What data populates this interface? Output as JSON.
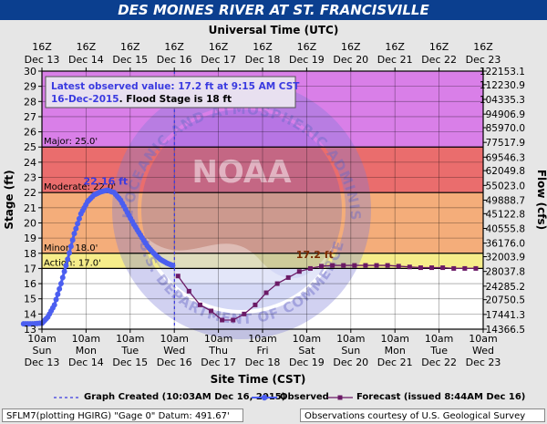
{
  "title": "DES MOINES RIVER AT ST. FRANCISVILLE",
  "top_axis_title": "Universal Time (UTC)",
  "bottom_axis_title": "Site Time (CST)",
  "left_axis_title": "Stage (ft)",
  "right_axis_title": "Flow (cfs)",
  "watermark": {
    "logo_text": "NOAA",
    "ring_text": "NATIONAL OCEANIC AND ATMOSPHERIC ADMINISTRATION",
    "department_text": "U.S. DEPARTMENT OF COMMERCE"
  },
  "info_box": {
    "observed_text": "Latest observed value: 17.2 ft at 9:15 AM CST 16-Dec-2015.",
    "observed_line1": "Latest observed value: 17.2 ft at 9:15 AM CST",
    "observed_line2a": "16-Dec-2015",
    "observed_line2b": ". Flood Stage is 18 ft"
  },
  "legend": {
    "graph_created": "Graph Created (10:03AM Dec 16, 2015)",
    "observed": "Observed",
    "forecast": "Forecast (issued 8:44AM Dec 16)"
  },
  "footer": {
    "left": "SFLM7(plotting HGIRG) \"Gage 0\" Datum: 491.67'",
    "right": "Observations courtesy of U.S. Geological Survey"
  },
  "colors": {
    "title_bar": "#0b3f8f",
    "record": "#d97fe8",
    "major": "#ea6d6d",
    "moderate": "#f4ad7a",
    "minor": "#f6ed8a",
    "action": "#ffff44",
    "below": "#ffffff",
    "observed": "#4b5ef0",
    "forecast": "#6b1a66",
    "annotation": "#3a3ae0",
    "forecast_label": "#7a2a00"
  },
  "chart_data": {
    "type": "line",
    "title": "DES MOINES RIVER AT ST. FRANCISVILLE",
    "xlabel": "Site Time (CST)",
    "ylabel": "Stage (ft)",
    "y2label": "Flow (cfs)",
    "ylim": [
      13,
      30
    ],
    "xlim": [
      "Dec 13 10am",
      "Dec 23 10am"
    ],
    "x_unit": "days since Dec 13 00:00 CST",
    "bottom_ticks": [
      {
        "day": "Sun",
        "date": "Dec 13",
        "time": "10am",
        "x": 0.4167
      },
      {
        "day": "Mon",
        "date": "Dec 14",
        "time": "10am",
        "x": 1.4167
      },
      {
        "day": "Tue",
        "date": "Dec 15",
        "time": "10am",
        "x": 2.4167
      },
      {
        "day": "Wed",
        "date": "Dec 16",
        "time": "10am",
        "x": 3.4167
      },
      {
        "day": "Thu",
        "date": "Dec 17",
        "time": "10am",
        "x": 4.4167
      },
      {
        "day": "Fri",
        "date": "Dec 18",
        "time": "10am",
        "x": 5.4167
      },
      {
        "day": "Sat",
        "date": "Dec 19",
        "time": "10am",
        "x": 6.4167
      },
      {
        "day": "Sun",
        "date": "Dec 20",
        "time": "10am",
        "x": 7.4167
      },
      {
        "day": "Mon",
        "date": "Dec 21",
        "time": "10am",
        "x": 8.4167
      },
      {
        "day": "Tue",
        "date": "Dec 22",
        "time": "10am",
        "x": 9.4167
      },
      {
        "day": "Wed",
        "date": "Dec 23",
        "time": "10am",
        "x": 10.4167
      }
    ],
    "top_ticks": [
      {
        "time": "16Z",
        "date": "Dec 13",
        "x": 0.4167
      },
      {
        "time": "16Z",
        "date": "Dec 14",
        "x": 1.4167
      },
      {
        "time": "16Z",
        "date": "Dec 15",
        "x": 2.4167
      },
      {
        "time": "16Z",
        "date": "Dec 16",
        "x": 3.4167
      },
      {
        "time": "16Z",
        "date": "Dec 17",
        "x": 4.4167
      },
      {
        "time": "16Z",
        "date": "Dec 18",
        "x": 5.4167
      },
      {
        "time": "16Z",
        "date": "Dec 19",
        "x": 6.4167
      },
      {
        "time": "16Z",
        "date": "Dec 20",
        "x": 7.4167
      },
      {
        "time": "16Z",
        "date": "Dec 21",
        "x": 8.4167
      },
      {
        "time": "16Z",
        "date": "Dec 22",
        "x": 9.4167
      },
      {
        "time": "16Z",
        "date": "Dec 23",
        "x": 10.4167
      }
    ],
    "y_ticks": [
      13,
      14,
      15,
      16,
      17,
      18,
      19,
      20,
      21,
      22,
      23,
      24,
      25,
      26,
      27,
      28,
      29,
      30
    ],
    "flow_ticks": [
      {
        "stage": 13.4,
        "label": "14366.5"
      },
      {
        "stage": 14.6,
        "label": "17441.3"
      },
      {
        "stage": 15.8,
        "label": "20750.5"
      },
      {
        "stage": 16.9,
        "label": "24285.2"
      },
      {
        "stage": 18.1,
        "label": "28037.8"
      },
      {
        "stage": 19.3,
        "label": "32003.9"
      },
      {
        "stage": 20.4,
        "label": "36176.0"
      },
      {
        "stage": 21.6,
        "label": "40555.8"
      },
      {
        "stage": 22.8,
        "label": "45122.8"
      },
      {
        "stage": 23.9,
        "label": "49888.7"
      },
      {
        "stage": 25.1,
        "label": "55023.0"
      },
      {
        "stage": 26.3,
        "label": "62049.8"
      },
      {
        "stage": 27.4,
        "label": "69546.3"
      },
      {
        "stage": 28.6,
        "label": "77517.9"
      },
      {
        "stage": 29.8,
        "label": "85970.0"
      },
      {
        "stage": 30.9,
        "label": "94906.9"
      },
      {
        "stage": 32.1,
        "label": "104335.3"
      },
      {
        "stage": 33.3,
        "label": "112230.9"
      },
      {
        "stage": 34.4,
        "label": "122153.1"
      }
    ],
    "flood_categories": [
      {
        "name": "Record",
        "from": 25.0,
        "to": 30.0
      },
      {
        "name": "Major",
        "from": 22.0,
        "to": 25.0,
        "label": "Major: 25.0'"
      },
      {
        "name": "Moderate",
        "from": 18.0,
        "to": 22.0,
        "label": "Moderate: 22.0'"
      },
      {
        "name": "Minor",
        "from": 17.0,
        "to": 18.0,
        "label": "Minor: 18.0'"
      },
      {
        "name": "Action",
        "from": 13.0,
        "to": 17.0,
        "label": "Action: 17.0'"
      }
    ],
    "graph_created_x": 3.42,
    "annotations": [
      {
        "text": "22.16 ft",
        "x": 1.9,
        "y": 22.16,
        "series": "Observed"
      },
      {
        "text": "17.2 ft",
        "x": 6.6,
        "y": 17.2,
        "series": "Forecast"
      }
    ],
    "series": [
      {
        "name": "Observed",
        "x": [
          0.0,
          0.2,
          0.42,
          0.55,
          0.7,
          0.85,
          1.0,
          1.15,
          1.3,
          1.45,
          1.6,
          1.75,
          1.9,
          2.05,
          2.2,
          2.35,
          2.5,
          2.65,
          2.8,
          2.95,
          3.1,
          3.25,
          3.38
        ],
        "y": [
          13.35,
          13.35,
          13.4,
          13.8,
          14.6,
          16.0,
          17.6,
          19.3,
          20.6,
          21.4,
          21.85,
          22.05,
          22.16,
          22.0,
          21.5,
          20.7,
          19.9,
          19.2,
          18.5,
          18.0,
          17.6,
          17.35,
          17.2
        ]
      },
      {
        "name": "Forecast",
        "x": [
          3.5,
          3.75,
          4.0,
          4.25,
          4.5,
          4.75,
          5.0,
          5.25,
          5.5,
          5.75,
          6.0,
          6.25,
          6.5,
          6.75,
          7.0,
          7.25,
          7.5,
          7.75,
          8.0,
          8.25,
          8.5,
          8.75,
          9.0,
          9.25,
          9.5,
          9.75,
          10.0,
          10.25
        ],
        "y": [
          16.5,
          15.5,
          14.6,
          14.2,
          13.6,
          13.6,
          14.0,
          14.6,
          15.4,
          16.0,
          16.4,
          16.8,
          17.0,
          17.15,
          17.2,
          17.2,
          17.2,
          17.2,
          17.2,
          17.2,
          17.15,
          17.1,
          17.05,
          17.05,
          17.05,
          17.0,
          17.0,
          17.0
        ]
      }
    ]
  }
}
